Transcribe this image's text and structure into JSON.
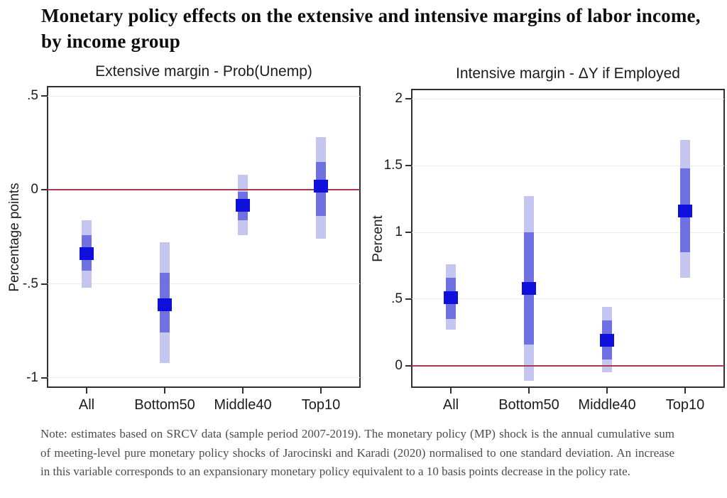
{
  "page_title": "Monetary policy effects on the extensive and intensive margins of labor income, by income group",
  "note": "Note: estimates based on SRCV data (sample period 2007-2019). The monetary policy (MP) shock is the annual cumulative sum of meeting-level pure monetary policy shocks of Jarocinski and Karadi (2020) normalised to one standard deviation. An increase in this variable corresponds to an expansionary monetary policy equivalent to a 10 basis points decrease in the policy rate.",
  "colors": {
    "outer_band": "#c5c6f0",
    "inner_band": "#6f71e3",
    "point_estimate": "#0f10dc",
    "zero_line": "#a83a50",
    "gridline": "#e9eef4",
    "axis": "#303030",
    "title_text": "#0d0d0d",
    "note_text": "#4c4c4c"
  },
  "chart_data": [
    {
      "type": "interval",
      "title": "Extensive margin - Prob(Unemp)",
      "ylabel": "Percentage points",
      "categories": [
        "All",
        "Bottom50",
        "Middle40",
        "Top10"
      ],
      "yticks": [
        {
          "value": 0.5,
          "label": ".5"
        },
        {
          "value": 0,
          "label": "0"
        },
        {
          "value": -0.5,
          "label": "-.5"
        },
        {
          "value": -1,
          "label": "-1"
        }
      ],
      "ylim": [
        -1.05,
        0.55
      ],
      "zero_line": 0,
      "grid": true,
      "legend": "none",
      "series": [
        {
          "category": "All",
          "point": -0.34,
          "inner": [
            -0.43,
            -0.24
          ],
          "outer": [
            -0.52,
            -0.16
          ]
        },
        {
          "category": "Bottom50",
          "point": -0.61,
          "inner": [
            -0.76,
            -0.44
          ],
          "outer": [
            -0.92,
            -0.28
          ]
        },
        {
          "category": "Middle40",
          "point": -0.08,
          "inner": [
            -0.16,
            -0.01
          ],
          "outer": [
            -0.24,
            0.08
          ]
        },
        {
          "category": "Top10",
          "point": 0.02,
          "inner": [
            -0.14,
            0.15
          ],
          "outer": [
            -0.26,
            0.28
          ]
        }
      ]
    },
    {
      "type": "interval",
      "title": "Intensive margin - ΔY if Employed",
      "ylabel": "Percent",
      "categories": [
        "All",
        "Bottom50",
        "Middle40",
        "Top10"
      ],
      "yticks": [
        {
          "value": 2,
          "label": "2"
        },
        {
          "value": 1.5,
          "label": "1.5"
        },
        {
          "value": 1,
          "label": "1"
        },
        {
          "value": 0.5,
          "label": ".5"
        },
        {
          "value": 0,
          "label": "0"
        }
      ],
      "ylim": [
        -0.16,
        2.07
      ],
      "zero_line": 0,
      "grid": true,
      "legend": "none",
      "series": [
        {
          "category": "All",
          "point": 0.51,
          "inner": [
            0.35,
            0.66
          ],
          "outer": [
            0.27,
            0.76
          ]
        },
        {
          "category": "Bottom50",
          "point": 0.58,
          "inner": [
            0.16,
            1.0
          ],
          "outer": [
            -0.11,
            1.27
          ]
        },
        {
          "category": "Middle40",
          "point": 0.19,
          "inner": [
            0.05,
            0.34
          ],
          "outer": [
            -0.05,
            0.44
          ]
        },
        {
          "category": "Top10",
          "point": 1.16,
          "inner": [
            0.85,
            1.48
          ],
          "outer": [
            0.66,
            1.69
          ]
        }
      ]
    }
  ]
}
